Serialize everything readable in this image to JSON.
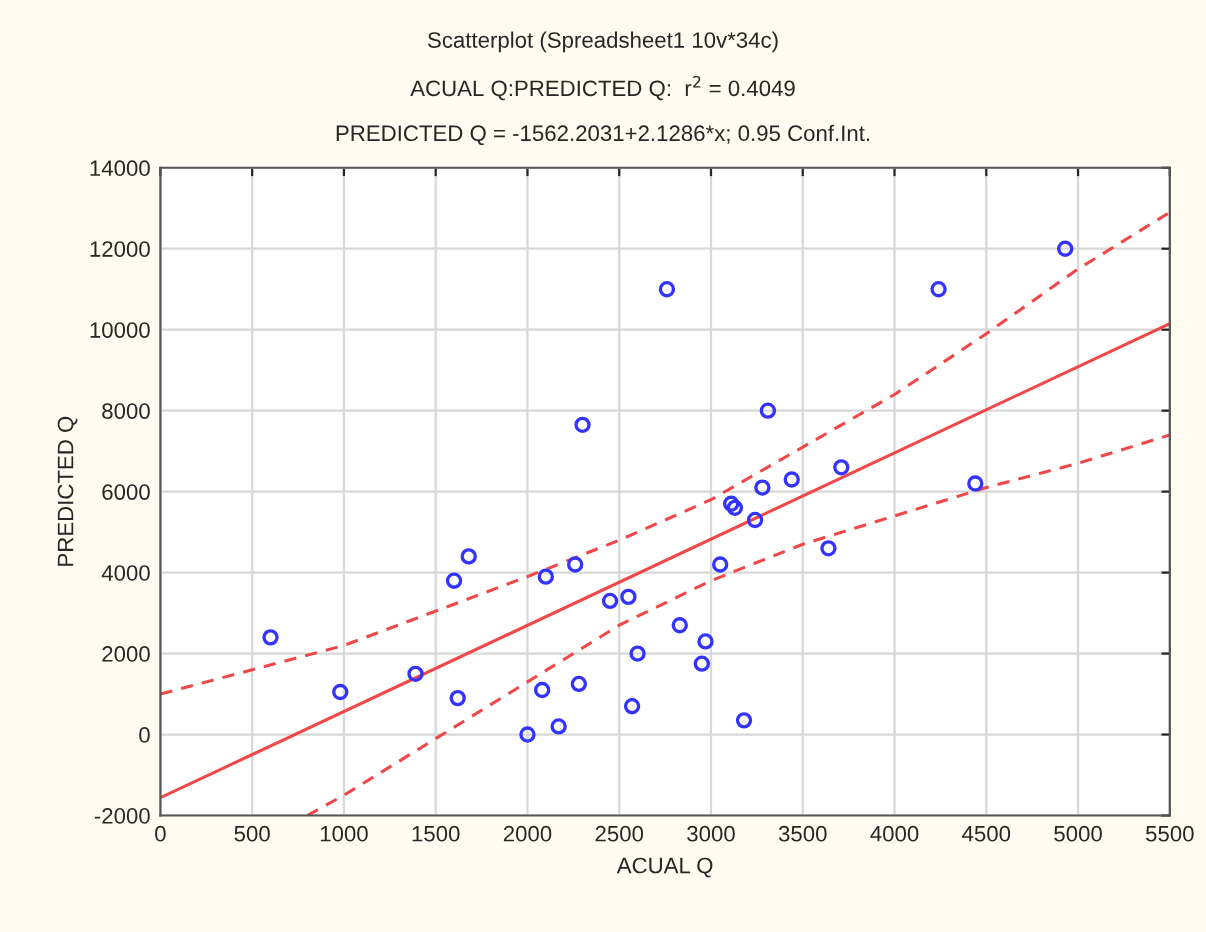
{
  "chart_data": {
    "type": "scatter",
    "title": "Scatterplot (Spreadsheet1 10v*34c)",
    "subtitle": "ACUAL Q:PREDICTED Q:  r$^{2}$ = 0.4049",
    "annotations": [
      "PREDICTED Q = -1562.2031+2.1286*x; 0.95 Conf.Int."
    ],
    "xlabel": "ACUAL Q",
    "ylabel": "PREDICTED Q",
    "xlim": [
      0,
      5500
    ],
    "xticks": [
      0,
      500,
      1000,
      1500,
      2000,
      2500,
      3000,
      3500,
      4000,
      4500,
      5000,
      5500
    ],
    "ylim": [
      -2000,
      14000
    ],
    "yticks": [
      -2000,
      0,
      2000,
      4000,
      6000,
      8000,
      10000,
      12000,
      14000
    ],
    "grid": true,
    "legend": false,
    "series": [
      {
        "marker": "circle",
        "color": "#3333ff",
        "x": [
          600,
          980,
          1390,
          1600,
          1680,
          1620,
          2000,
          2080,
          2100,
          2170,
          2260,
          2280,
          2300,
          2450,
          2550,
          2570,
          2600,
          2760,
          2830,
          2950,
          2970,
          3050,
          3110,
          3130,
          3180,
          3240,
          3280,
          3310,
          3440,
          3640,
          3710,
          4240,
          4440,
          4930
        ],
        "values": [
          2400,
          1050,
          1500,
          3800,
          4400,
          900,
          0,
          1100,
          3900,
          200,
          4200,
          1250,
          7650,
          3300,
          3400,
          700,
          2000,
          11000,
          2700,
          1750,
          2300,
          4200,
          5700,
          5600,
          350,
          5300,
          6100,
          8000,
          6300,
          4600,
          6600,
          11000,
          6200,
          12000
        ]
      },
      {
        "type": "line",
        "color": "#f04848",
        "line_style": "solid",
        "x": [
          0,
          5500
        ],
        "values": [
          -1560,
          10150
        ]
      },
      {
        "type": "line",
        "color": "#f04848",
        "line_style": "dashed",
        "x": [
          0,
          1000,
          2000,
          2500,
          3000,
          3500,
          4000,
          4500,
          5000,
          5500
        ],
        "values": [
          1000,
          2200,
          3900,
          4800,
          5800,
          7100,
          8400,
          9900,
          11500,
          12900
        ]
      },
      {
        "type": "line",
        "color": "#f04848",
        "line_style": "dashed",
        "x": [
          800,
          1000,
          1500,
          2000,
          2500,
          3000,
          3500,
          4000,
          4500,
          5000,
          5500
        ],
        "values": [
          -2000,
          -1500,
          -100,
          1300,
          2700,
          3800,
          4700,
          5400,
          6100,
          6700,
          7400
        ]
      }
    ]
  }
}
